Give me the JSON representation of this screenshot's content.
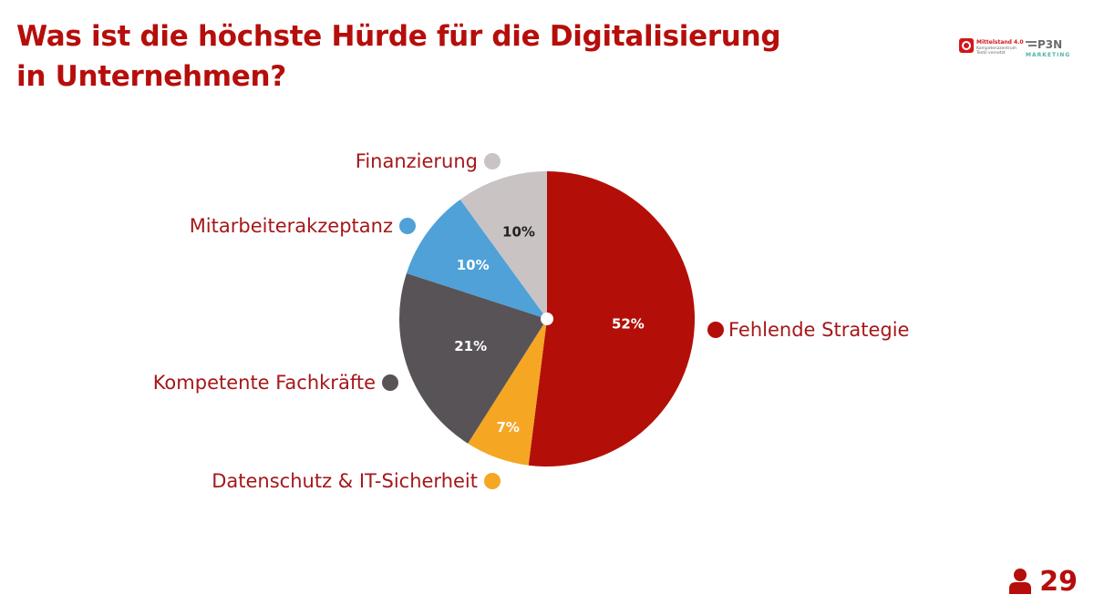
{
  "title": "Was ist die höchste Hürde für die Digitalisierung in Unternehmen?",
  "logos": {
    "left_text_1": "Mittelstand 4.0",
    "left_text_2": "Kompetenzzentrum",
    "left_text_3": "Textil vernetzt",
    "right_text_1": "P3N",
    "right_text_2": "MARKETING"
  },
  "counter": {
    "icon": "person-icon",
    "value": "29"
  },
  "colors": {
    "accent": "#b50e0b",
    "label": "#a5171a"
  },
  "chart_data": {
    "type": "pie",
    "start_angle_deg": 0,
    "direction": "clockwise",
    "slices": [
      {
        "label": "Fehlende Strategie",
        "value": 52,
        "value_label": "52%",
        "color": "#b30f08",
        "text_color": "#ffffff"
      },
      {
        "label": "Datenschutz & IT-Sicherheit",
        "value": 7,
        "value_label": "7%",
        "color": "#f5a623",
        "text_color": "#ffffff"
      },
      {
        "label": "Kompetente Fachkräfte",
        "value": 21,
        "value_label": "21%",
        "color": "#585356",
        "text_color": "#ffffff"
      },
      {
        "label": "Mitarbeiterakzeptanz",
        "value": 10,
        "value_label": "10%",
        "color": "#4fa1d8",
        "text_color": "#ffffff"
      },
      {
        "label": "Finanzierung",
        "value": 10,
        "value_label": "10%",
        "color": "#c9c3c4",
        "text_color": "#222222"
      }
    ]
  }
}
